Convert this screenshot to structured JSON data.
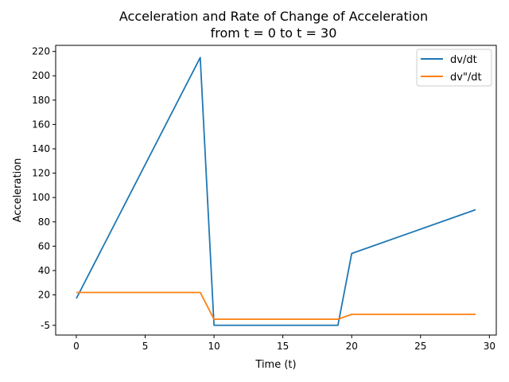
{
  "chart_data": {
    "type": "line",
    "title": "Acceleration and Rate of Change of Acceleration",
    "subtitle": "from t = 0 to t = 30",
    "xlabel": "Time (t)",
    "ylabel": "Acceleration",
    "xlim": [
      -1.5,
      30.5
    ],
    "ylim": [
      -13,
      225
    ],
    "x_ticks": [
      0,
      5,
      10,
      15,
      20,
      25,
      30
    ],
    "x_tick_labels": [
      "0",
      "5",
      "10",
      "15",
      "20",
      "25",
      "30"
    ],
    "y_ticks": [
      -5,
      20,
      40,
      60,
      80,
      100,
      120,
      140,
      160,
      180,
      200,
      220
    ],
    "y_tick_labels": [
      "-5",
      "20",
      "40",
      "60",
      "80",
      "100",
      "120",
      "140",
      "160",
      "180",
      "200",
      "220"
    ],
    "grid": false,
    "legend_position": "top-right",
    "series": [
      {
        "name": "dv/dt",
        "color": "#1f77b4",
        "points": [
          [
            0,
            17
          ],
          [
            9,
            215
          ],
          [
            10,
            -5
          ],
          [
            19,
            -5
          ],
          [
            20,
            54
          ],
          [
            29,
            90
          ]
        ]
      },
      {
        "name": "dv\"/dt",
        "color": "#ff7f0e",
        "points": [
          [
            0,
            22
          ],
          [
            9,
            22
          ],
          [
            10,
            0
          ],
          [
            19,
            0
          ],
          [
            20,
            4
          ],
          [
            29,
            4
          ]
        ]
      }
    ]
  }
}
